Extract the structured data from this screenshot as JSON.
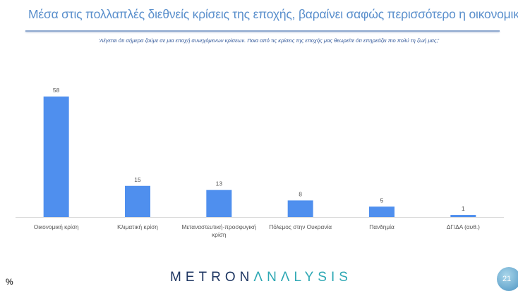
{
  "header": {
    "title": "Μέσα στις πολλαπλές διεθνείς κρίσεις της εποχής, βαραίνει σαφώς περισσότερο η οικονομική",
    "subtitle": "'Λέγεται ότι σήμερα ζούμε σε μια εποχή συνεχόμενων κρίσεων. Ποια από τις κρίσεις της εποχής μας θεωρείτε ότι επηρεάζει πιο πολύ τη ζωή μας;'"
  },
  "chart_data": {
    "type": "bar",
    "categories": [
      "Οικονομική κρίση",
      "Κλιματική κρίση",
      "Μεταναστευτική-προσφυγική κρίση",
      "Πόλεμος στην Ουκρανία",
      "Πανδημία",
      "ΔΓ/ΔΑ (αυθ.)"
    ],
    "values": [
      58,
      15,
      13,
      8,
      5,
      1
    ],
    "ylim": [
      0,
      60
    ],
    "grid": false,
    "bar_color": "#4f8fee",
    "unit_label": "%"
  },
  "footer": {
    "unit": "%",
    "logo_part1": "METRON",
    "logo_part2": "ΛNΛLYSIS",
    "page": "21"
  }
}
